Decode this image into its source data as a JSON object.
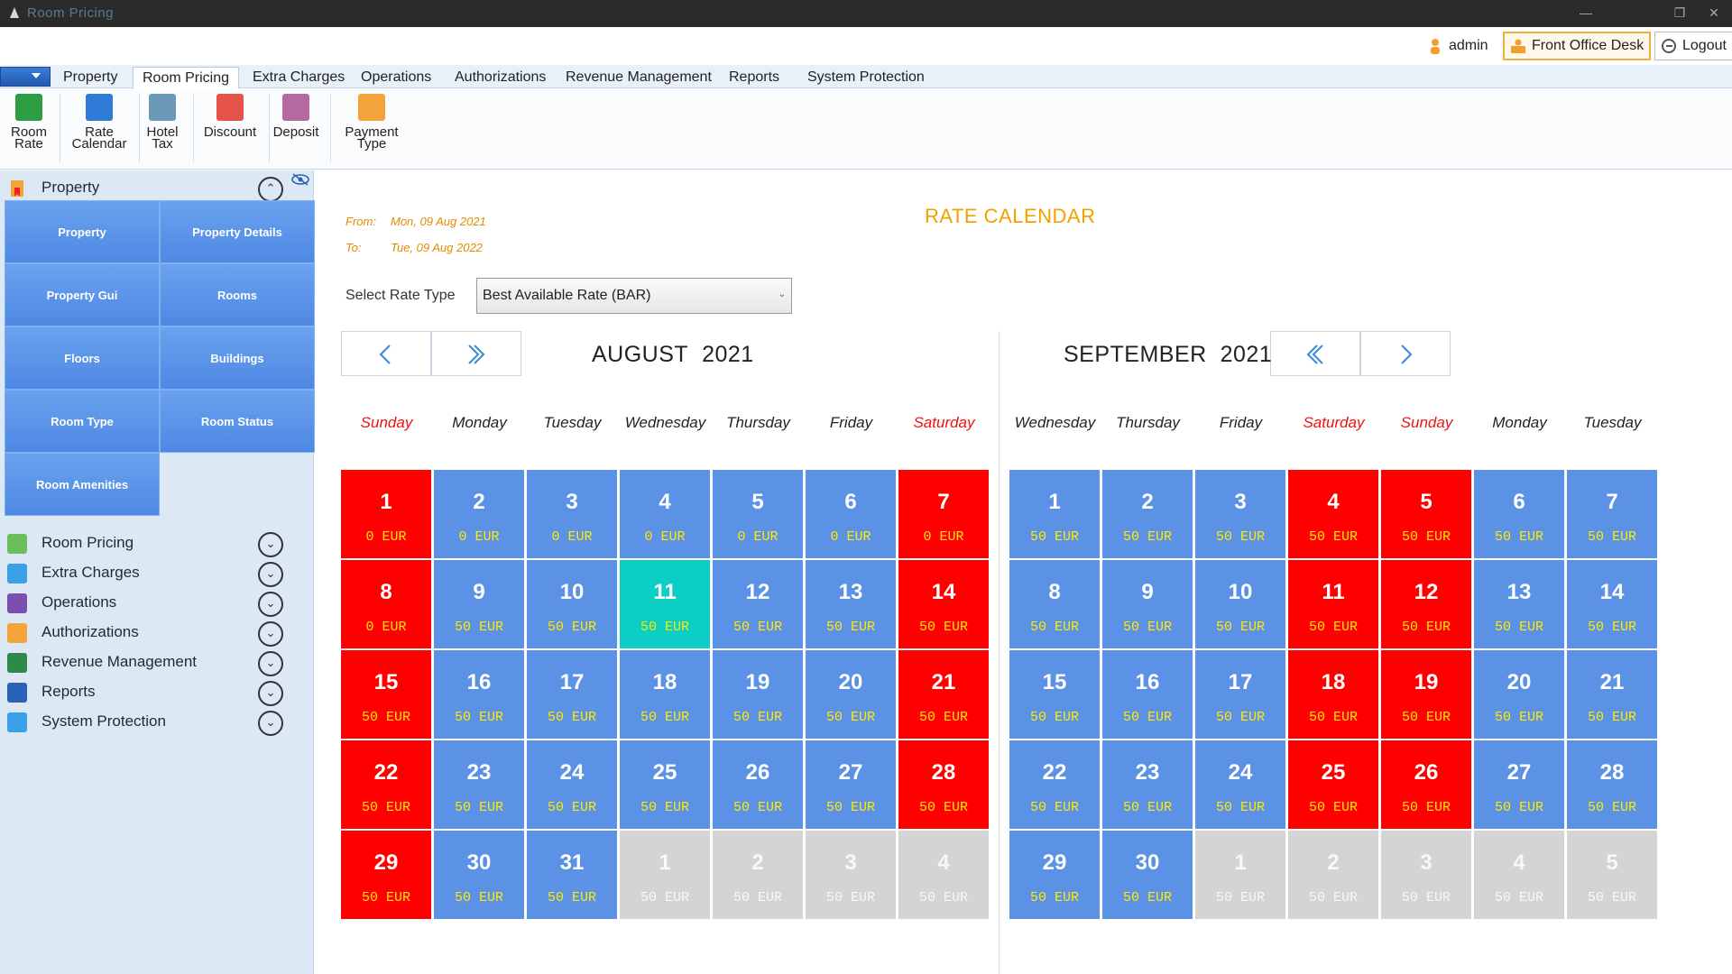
{
  "window": {
    "title": "Room Pricing"
  },
  "userbar": {
    "user": "admin",
    "desk": "Front Office Desk",
    "logout": "Logout"
  },
  "menu": [
    "Property",
    "Room Pricing",
    "Extra Charges",
    "Operations",
    "Authorizations",
    "Revenue Management",
    "Reports",
    "System Protection"
  ],
  "menu_active": "Room Pricing",
  "ribbon": [
    {
      "line1": "Room",
      "line2": "Rate",
      "icon": "dollar-icon",
      "color": "#2e9e44"
    },
    {
      "line1": "Rate",
      "line2": "Calendar",
      "icon": "calendar-icon",
      "color": "#2f7bd8"
    },
    {
      "line1": "Hotel",
      "line2": "Tax",
      "icon": "tax-icon",
      "color": "#6b9ab8"
    },
    {
      "line1": "Discount",
      "line2": "",
      "icon": "percent-icon",
      "color": "#e5534b"
    },
    {
      "line1": "Deposit",
      "line2": "",
      "icon": "piggy-bank-icon",
      "color": "#b46aa0"
    },
    {
      "line1": "Payment",
      "line2": "Type",
      "icon": "card-icon",
      "color": "#f2a33a"
    }
  ],
  "sidebar": {
    "expanded_group": "Property",
    "tiles": [
      "Property",
      "Property Details",
      "Property Gui",
      "Rooms",
      "Floors",
      "Buildings",
      "Room Type",
      "Room Status",
      "Room Amenities"
    ],
    "groups": [
      "Room Pricing",
      "Extra Charges",
      "Operations",
      "Authorizations",
      "Revenue Management",
      "Reports",
      "System Protection"
    ]
  },
  "main": {
    "from_label": "From:",
    "from_value": "Mon, 09 Aug 2021",
    "to_label": "To:",
    "to_value": "Tue, 09 Aug 2022",
    "title": "RATE CALENDAR",
    "rate_label": "Select Rate Type",
    "rate_value": "Best Available Rate (BAR)"
  },
  "calendars": [
    {
      "month": "AUGUST",
      "year": "2021",
      "days": [
        "Sunday",
        "Monday",
        "Tuesday",
        "Wednesday",
        "Thursday",
        "Friday",
        "Saturday"
      ],
      "weekend_cols": [
        0,
        6
      ],
      "currency": "EUR",
      "cells": [
        {
          "d": "1",
          "p": "0",
          "c": "red"
        },
        {
          "d": "2",
          "p": "0",
          "c": "blue"
        },
        {
          "d": "3",
          "p": "0",
          "c": "blue"
        },
        {
          "d": "4",
          "p": "0",
          "c": "blue"
        },
        {
          "d": "5",
          "p": "0",
          "c": "blue"
        },
        {
          "d": "6",
          "p": "0",
          "c": "blue"
        },
        {
          "d": "7",
          "p": "0",
          "c": "red"
        },
        {
          "d": "8",
          "p": "0",
          "c": "red"
        },
        {
          "d": "9",
          "p": "50",
          "c": "blue"
        },
        {
          "d": "10",
          "p": "50",
          "c": "blue"
        },
        {
          "d": "11",
          "p": "50",
          "c": "teal"
        },
        {
          "d": "12",
          "p": "50",
          "c": "blue"
        },
        {
          "d": "13",
          "p": "50",
          "c": "blue"
        },
        {
          "d": "14",
          "p": "50",
          "c": "red"
        },
        {
          "d": "15",
          "p": "50",
          "c": "red"
        },
        {
          "d": "16",
          "p": "50",
          "c": "blue"
        },
        {
          "d": "17",
          "p": "50",
          "c": "blue"
        },
        {
          "d": "18",
          "p": "50",
          "c": "blue"
        },
        {
          "d": "19",
          "p": "50",
          "c": "blue"
        },
        {
          "d": "20",
          "p": "50",
          "c": "blue"
        },
        {
          "d": "21",
          "p": "50",
          "c": "red"
        },
        {
          "d": "22",
          "p": "50",
          "c": "red"
        },
        {
          "d": "23",
          "p": "50",
          "c": "blue"
        },
        {
          "d": "24",
          "p": "50",
          "c": "blue"
        },
        {
          "d": "25",
          "p": "50",
          "c": "blue"
        },
        {
          "d": "26",
          "p": "50",
          "c": "blue"
        },
        {
          "d": "27",
          "p": "50",
          "c": "blue"
        },
        {
          "d": "28",
          "p": "50",
          "c": "red"
        },
        {
          "d": "29",
          "p": "50",
          "c": "red"
        },
        {
          "d": "30",
          "p": "50",
          "c": "blue"
        },
        {
          "d": "31",
          "p": "50",
          "c": "blue"
        },
        {
          "d": "1",
          "p": "50",
          "c": "grey"
        },
        {
          "d": "2",
          "p": "50",
          "c": "grey"
        },
        {
          "d": "3",
          "p": "50",
          "c": "grey"
        },
        {
          "d": "4",
          "p": "50",
          "c": "grey"
        }
      ]
    },
    {
      "month": "SEPTEMBER",
      "year": "2021",
      "days": [
        "Wednesday",
        "Thursday",
        "Friday",
        "Saturday",
        "Sunday",
        "Monday",
        "Tuesday"
      ],
      "weekend_cols": [
        3,
        4
      ],
      "currency": "EUR",
      "cells": [
        {
          "d": "1",
          "p": "50",
          "c": "blue"
        },
        {
          "d": "2",
          "p": "50",
          "c": "blue"
        },
        {
          "d": "3",
          "p": "50",
          "c": "blue"
        },
        {
          "d": "4",
          "p": "50",
          "c": "red"
        },
        {
          "d": "5",
          "p": "50",
          "c": "red"
        },
        {
          "d": "6",
          "p": "50",
          "c": "blue"
        },
        {
          "d": "7",
          "p": "50",
          "c": "blue"
        },
        {
          "d": "8",
          "p": "50",
          "c": "blue"
        },
        {
          "d": "9",
          "p": "50",
          "c": "blue"
        },
        {
          "d": "10",
          "p": "50",
          "c": "blue"
        },
        {
          "d": "11",
          "p": "50",
          "c": "red"
        },
        {
          "d": "12",
          "p": "50",
          "c": "red"
        },
        {
          "d": "13",
          "p": "50",
          "c": "blue"
        },
        {
          "d": "14",
          "p": "50",
          "c": "blue"
        },
        {
          "d": "15",
          "p": "50",
          "c": "blue"
        },
        {
          "d": "16",
          "p": "50",
          "c": "blue"
        },
        {
          "d": "17",
          "p": "50",
          "c": "blue"
        },
        {
          "d": "18",
          "p": "50",
          "c": "red"
        },
        {
          "d": "19",
          "p": "50",
          "c": "red"
        },
        {
          "d": "20",
          "p": "50",
          "c": "blue"
        },
        {
          "d": "21",
          "p": "50",
          "c": "blue"
        },
        {
          "d": "22",
          "p": "50",
          "c": "blue"
        },
        {
          "d": "23",
          "p": "50",
          "c": "blue"
        },
        {
          "d": "24",
          "p": "50",
          "c": "blue"
        },
        {
          "d": "25",
          "p": "50",
          "c": "red"
        },
        {
          "d": "26",
          "p": "50",
          "c": "red"
        },
        {
          "d": "27",
          "p": "50",
          "c": "blue"
        },
        {
          "d": "28",
          "p": "50",
          "c": "blue"
        },
        {
          "d": "29",
          "p": "50",
          "c": "blue"
        },
        {
          "d": "30",
          "p": "50",
          "c": "blue"
        },
        {
          "d": "1",
          "p": "50",
          "c": "grey"
        },
        {
          "d": "2",
          "p": "50",
          "c": "grey"
        },
        {
          "d": "3",
          "p": "50",
          "c": "grey"
        },
        {
          "d": "4",
          "p": "50",
          "c": "grey"
        },
        {
          "d": "5",
          "p": "50",
          "c": "grey"
        }
      ]
    }
  ]
}
